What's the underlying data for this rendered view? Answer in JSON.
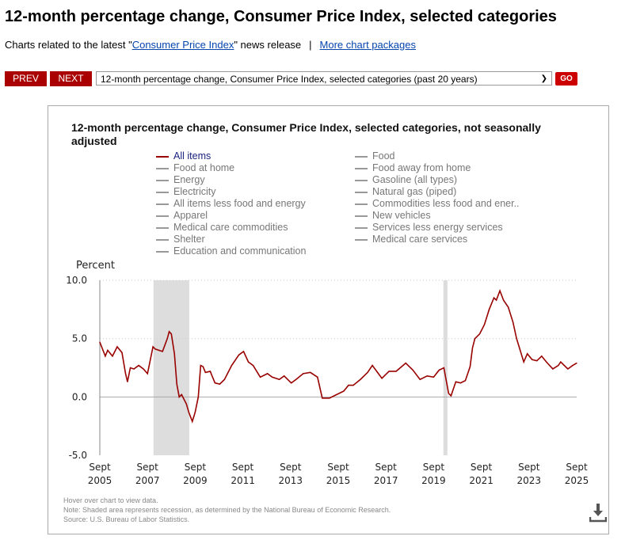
{
  "page": {
    "title": "12-month percentage change, Consumer Price Index, selected categories",
    "related_prefix": "Charts related to the latest \"",
    "related_link": "Consumer Price Index",
    "related_suffix": "\" news release",
    "separator": "|",
    "more_link": "More chart packages"
  },
  "nav": {
    "prev": "PREV",
    "next": "NEXT",
    "select_value": "12-month percentage change, Consumer Price Index, selected categories (past 20 years)",
    "go": "GO"
  },
  "legend": [
    {
      "label": "All items",
      "color": "#990000",
      "active": true
    },
    {
      "label": "Food",
      "color": "#999999"
    },
    {
      "label": "Food at home",
      "color": "#999999"
    },
    {
      "label": "Food away from home",
      "color": "#999999"
    },
    {
      "label": "Energy",
      "color": "#999999"
    },
    {
      "label": "Gasoline (all types)",
      "color": "#999999"
    },
    {
      "label": "Electricity",
      "color": "#999999"
    },
    {
      "label": "Natural gas (piped)",
      "color": "#999999"
    },
    {
      "label": "All items less food and energy",
      "color": "#999999"
    },
    {
      "label": "Commodities less food and ener..",
      "color": "#999999"
    },
    {
      "label": "Apparel",
      "color": "#999999"
    },
    {
      "label": "New vehicles",
      "color": "#999999"
    },
    {
      "label": "Medical care commodities",
      "color": "#999999"
    },
    {
      "label": "Services less energy services",
      "color": "#999999"
    },
    {
      "label": "Shelter",
      "color": "#999999"
    },
    {
      "label": "Medical care services",
      "color": "#999999"
    },
    {
      "label": "Education and communication",
      "color": "#999999"
    }
  ],
  "notes": {
    "hover": "Hover over chart to view data.",
    "note": "Note: Shaded area represents recession, as determined by the National Bureau of Economic Research.",
    "source": "Source: U.S. Bureau of Labor Statistics."
  },
  "chart_data": {
    "type": "line",
    "title": "12-month percentage change, Consumer Price Index, selected categories, not seasonally adjusted",
    "ylabel": "Percent",
    "ylim": [
      -5,
      10
    ],
    "xlim": [
      2005.67,
      2025.67
    ],
    "yticks": [
      {
        "v": 10,
        "label": "10.0"
      },
      {
        "v": 5,
        "label": "5.0"
      },
      {
        "v": 0,
        "label": "0.0"
      },
      {
        "v": -5,
        "label": "-5.0"
      }
    ],
    "xticks": [
      {
        "v": 2005.67,
        "m": "Sept",
        "y": "2005"
      },
      {
        "v": 2007.67,
        "m": "Sept",
        "y": "2007"
      },
      {
        "v": 2009.67,
        "m": "Sept",
        "y": "2009"
      },
      {
        "v": 2011.67,
        "m": "Sept",
        "y": "2011"
      },
      {
        "v": 2013.67,
        "m": "Sept",
        "y": "2013"
      },
      {
        "v": 2015.67,
        "m": "Sept",
        "y": "2015"
      },
      {
        "v": 2017.67,
        "m": "Sept",
        "y": "2017"
      },
      {
        "v": 2019.67,
        "m": "Sept",
        "y": "2019"
      },
      {
        "v": 2021.67,
        "m": "Sept",
        "y": "2021"
      },
      {
        "v": 2023.67,
        "m": "Sept",
        "y": "2023"
      },
      {
        "v": 2025.67,
        "m": "Sept",
        "y": "2025"
      }
    ],
    "recessions": [
      [
        2007.92,
        2009.42
      ],
      [
        2020.08,
        2020.25
      ]
    ],
    "series": [
      {
        "name": "All items",
        "color": "#990000",
        "points": [
          [
            2005.67,
            4.7
          ],
          [
            2005.9,
            3.5
          ],
          [
            2006.0,
            4.0
          ],
          [
            2006.2,
            3.5
          ],
          [
            2006.4,
            4.3
          ],
          [
            2006.6,
            3.8
          ],
          [
            2006.75,
            2.0
          ],
          [
            2006.83,
            1.3
          ],
          [
            2006.95,
            2.5
          ],
          [
            2007.1,
            2.4
          ],
          [
            2007.3,
            2.7
          ],
          [
            2007.5,
            2.4
          ],
          [
            2007.67,
            2.0
          ],
          [
            2007.9,
            4.3
          ],
          [
            2008.0,
            4.1
          ],
          [
            2008.3,
            3.9
          ],
          [
            2008.5,
            5.0
          ],
          [
            2008.58,
            5.6
          ],
          [
            2008.67,
            5.4
          ],
          [
            2008.8,
            3.7
          ],
          [
            2008.9,
            1.1
          ],
          [
            2009.0,
            0.0
          ],
          [
            2009.1,
            0.2
          ],
          [
            2009.3,
            -0.6
          ],
          [
            2009.4,
            -1.3
          ],
          [
            2009.55,
            -2.1
          ],
          [
            2009.67,
            -1.3
          ],
          [
            2009.8,
            0.0
          ],
          [
            2009.9,
            2.7
          ],
          [
            2010.0,
            2.6
          ],
          [
            2010.1,
            2.1
          ],
          [
            2010.3,
            2.2
          ],
          [
            2010.5,
            1.2
          ],
          [
            2010.7,
            1.1
          ],
          [
            2010.9,
            1.5
          ],
          [
            2011.2,
            2.7
          ],
          [
            2011.5,
            3.6
          ],
          [
            2011.7,
            3.9
          ],
          [
            2011.9,
            3.0
          ],
          [
            2012.1,
            2.7
          ],
          [
            2012.4,
            1.7
          ],
          [
            2012.7,
            2.0
          ],
          [
            2012.9,
            1.7
          ],
          [
            2013.2,
            1.5
          ],
          [
            2013.4,
            1.8
          ],
          [
            2013.7,
            1.2
          ],
          [
            2013.9,
            1.5
          ],
          [
            2014.2,
            2.0
          ],
          [
            2014.5,
            2.1
          ],
          [
            2014.8,
            1.7
          ],
          [
            2015.0,
            -0.1
          ],
          [
            2015.3,
            -0.1
          ],
          [
            2015.6,
            0.2
          ],
          [
            2015.9,
            0.5
          ],
          [
            2016.1,
            1.0
          ],
          [
            2016.3,
            1.0
          ],
          [
            2016.6,
            1.5
          ],
          [
            2016.9,
            2.1
          ],
          [
            2017.1,
            2.7
          ],
          [
            2017.5,
            1.6
          ],
          [
            2017.8,
            2.2
          ],
          [
            2018.1,
            2.2
          ],
          [
            2018.5,
            2.9
          ],
          [
            2018.8,
            2.3
          ],
          [
            2019.1,
            1.5
          ],
          [
            2019.4,
            1.8
          ],
          [
            2019.67,
            1.7
          ],
          [
            2019.9,
            2.3
          ],
          [
            2020.1,
            2.5
          ],
          [
            2020.3,
            0.3
          ],
          [
            2020.4,
            0.1
          ],
          [
            2020.6,
            1.3
          ],
          [
            2020.8,
            1.2
          ],
          [
            2021.0,
            1.4
          ],
          [
            2021.2,
            2.6
          ],
          [
            2021.3,
            4.2
          ],
          [
            2021.4,
            5.0
          ],
          [
            2021.6,
            5.4
          ],
          [
            2021.8,
            6.2
          ],
          [
            2022.0,
            7.5
          ],
          [
            2022.2,
            8.5
          ],
          [
            2022.3,
            8.3
          ],
          [
            2022.45,
            9.1
          ],
          [
            2022.6,
            8.3
          ],
          [
            2022.8,
            7.7
          ],
          [
            2023.0,
            6.4
          ],
          [
            2023.15,
            5.0
          ],
          [
            2023.3,
            4.0
          ],
          [
            2023.45,
            3.0
          ],
          [
            2023.6,
            3.7
          ],
          [
            2023.8,
            3.2
          ],
          [
            2024.0,
            3.1
          ],
          [
            2024.2,
            3.5
          ],
          [
            2024.4,
            3.0
          ],
          [
            2024.67,
            2.4
          ],
          [
            2024.9,
            2.7
          ],
          [
            2025.0,
            3.0
          ],
          [
            2025.3,
            2.4
          ],
          [
            2025.5,
            2.7
          ],
          [
            2025.67,
            2.9
          ]
        ]
      }
    ]
  }
}
